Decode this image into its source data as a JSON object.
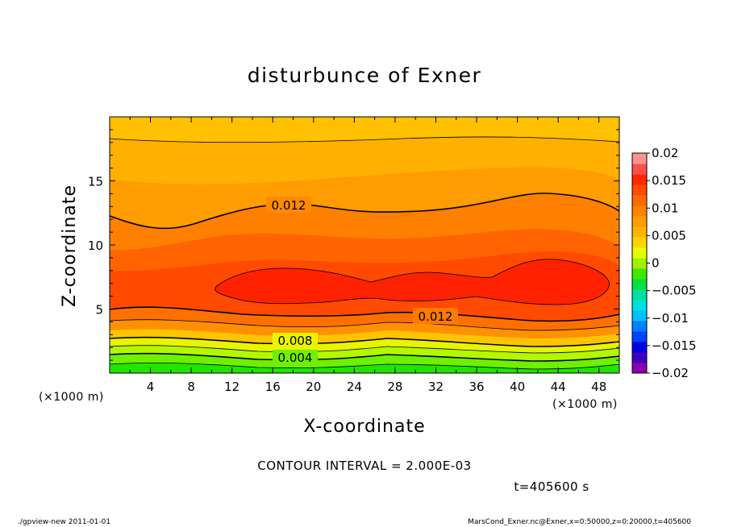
{
  "chart_data": {
    "type": "contour",
    "title": "disturbunce of Exner",
    "xlabel": "X-coordinate",
    "ylabel": "Z-coordinate",
    "x_unit_label": "(×1000 m)",
    "y_unit_label": "(×1000 m)",
    "xlim": [
      0,
      50
    ],
    "ylim": [
      0,
      20
    ],
    "x_ticks": [
      "4",
      "8",
      "12",
      "16",
      "20",
      "24",
      "28",
      "32",
      "36",
      "40",
      "44",
      "48"
    ],
    "y_ticks": [
      "5",
      "10",
      "15"
    ],
    "contour_interval_text": "CONTOUR INTERVAL = 2.000E-03",
    "time_text": "t=405600 s",
    "contour_labels": [
      "0.012",
      "0.012",
      "0.008",
      "0.004"
    ],
    "colorbar": {
      "ticks": [
        "0.02",
        "0.015",
        "0.01",
        "0.005",
        "0",
        "−0.005",
        "−0.01",
        "−0.015",
        "−0.02"
      ],
      "range": [
        -0.02,
        0.02
      ],
      "colors": [
        "#e4ff00",
        "#ffd500",
        "#ffb400",
        "#ff9c00",
        "#ff8400",
        "#ff6a00",
        "#ff4c00",
        "#ff2800",
        "#ff5050",
        "#ff9090"
      ]
    },
    "field_bands": [
      {
        "value": 0.002,
        "color": "#20e800"
      },
      {
        "value": 0.004,
        "color": "#6ef000"
      },
      {
        "value": 0.006,
        "color": "#b4f800"
      },
      {
        "value": 0.008,
        "color": "#e8f400"
      },
      {
        "value": 0.009,
        "color": "#ffd800"
      },
      {
        "value": 0.01,
        "color": "#ffb400"
      },
      {
        "value": 0.011,
        "color": "#ff9c00"
      },
      {
        "value": 0.012,
        "color": "#ff7a00"
      },
      {
        "value": 0.013,
        "color": "#ff5e00"
      },
      {
        "value": 0.014,
        "color": "#ff4400"
      },
      {
        "value": 0.015,
        "color": "#ff2400"
      }
    ]
  },
  "footer": {
    "left": "./gpview-new   2011-01-01",
    "right": "MarsCond_Exner.nc@Exner,x=0:50000,z=0:20000,t=405600"
  }
}
